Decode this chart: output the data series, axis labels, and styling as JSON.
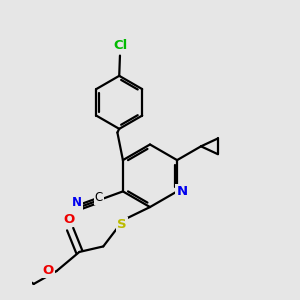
{
  "background_color": "#e6e6e6",
  "atom_colors": {
    "C": "#000000",
    "N": "#0000ee",
    "O": "#ee0000",
    "S": "#bbbb00",
    "Cl": "#00bb00"
  },
  "bond_color": "#000000",
  "figsize": [
    3.0,
    3.0
  ],
  "dpi": 100,
  "lw": 1.6,
  "doff": 0.07
}
